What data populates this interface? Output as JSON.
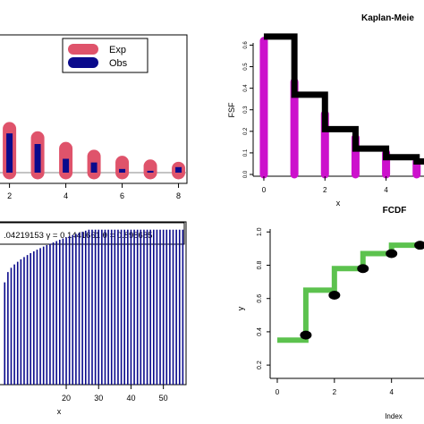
{
  "colors": {
    "exp": "#DF536B",
    "obs": "#0A0A8C",
    "km_bar": "#CC11CC",
    "km_step": "#000000",
    "fcdf_step": "#5CC24E",
    "fcdf_point": "#000000",
    "param_bars": "#0A0A8C",
    "axis": "#000000"
  },
  "chart_data": [
    {
      "panel": "top-left",
      "type": "bar",
      "title": "",
      "xlabel": "",
      "ylabel": "",
      "x_ticks": [
        "2",
        "4",
        "6",
        "8"
      ],
      "xlim": [
        1.6,
        8.3
      ],
      "ylim": [
        0,
        0.3
      ],
      "grid": false,
      "legend": {
        "placement": "top-right",
        "entries": [
          "Exp",
          "Obs"
        ]
      },
      "x": [
        2,
        3,
        4,
        5,
        6,
        7,
        8
      ],
      "series": [
        {
          "name": "Exp",
          "values": [
            0.095,
            0.075,
            0.052,
            0.035,
            0.022,
            0.014,
            0.009
          ]
        },
        {
          "name": "Obs",
          "values": [
            0.085,
            0.062,
            0.03,
            0.022,
            0.008,
            0.004,
            0.012
          ]
        }
      ]
    },
    {
      "panel": "top-right",
      "type": "bar",
      "title": "Kaplan-Meie",
      "xlabel": "x",
      "ylabel": "FSF",
      "x_ticks": [
        "0",
        "2",
        "4"
      ],
      "y_ticks": [
        "0.0",
        "0.1",
        "0.2",
        "0.3",
        "0.4",
        "0.5",
        "0.6"
      ],
      "xlim": [
        -0.35,
        5.3
      ],
      "ylim": [
        0,
        0.66
      ],
      "grid": false,
      "x": [
        0,
        1,
        2,
        3,
        4,
        5
      ],
      "series": [
        {
          "name": "",
          "kind": "bar",
          "values": [
            0.62,
            0.43,
            0.28,
            0.17,
            0.1,
            0.06
          ]
        },
        {
          "name": "",
          "kind": "step",
          "values": [
            0.64,
            0.37,
            0.21,
            0.12,
            0.08,
            0.06
          ]
        }
      ]
    },
    {
      "panel": "bottom-left",
      "type": "bar",
      "title": "",
      "xlabel": "x",
      "ylabel": "",
      "x_ticks": [
        "20",
        "30",
        "40",
        "50"
      ],
      "xlim": [
        -1,
        57
      ],
      "ylim": [
        0,
        1.02
      ],
      "grid": false,
      "annotation": ".04219153  γ = 0.1441661  θ = 0.898685",
      "x_start": 1,
      "x_end": 56,
      "plateau_value": 0.955,
      "rise_to_x": 27
    },
    {
      "panel": "bottom-right",
      "type": "line",
      "title": "FCDF",
      "xlabel": "Index",
      "ylabel": "y",
      "x_ticks": [
        "0",
        "2",
        "4"
      ],
      "y_ticks": [
        "0.2",
        "0.4",
        "0.6",
        "0.8",
        "1.0"
      ],
      "xlim": [
        -0.25,
        5.2
      ],
      "ylim": [
        0.12,
        1.05
      ],
      "grid": false,
      "step": {
        "x": [
          0,
          1,
          1,
          2,
          2,
          3,
          3,
          4,
          4,
          5
        ],
        "y": [
          0.35,
          0.35,
          0.65,
          0.65,
          0.78,
          0.78,
          0.87,
          0.87,
          0.92,
          0.92
        ]
      },
      "points": {
        "x": [
          1,
          2,
          3,
          4,
          5
        ],
        "y": [
          0.38,
          0.62,
          0.78,
          0.87,
          0.92
        ]
      }
    }
  ]
}
